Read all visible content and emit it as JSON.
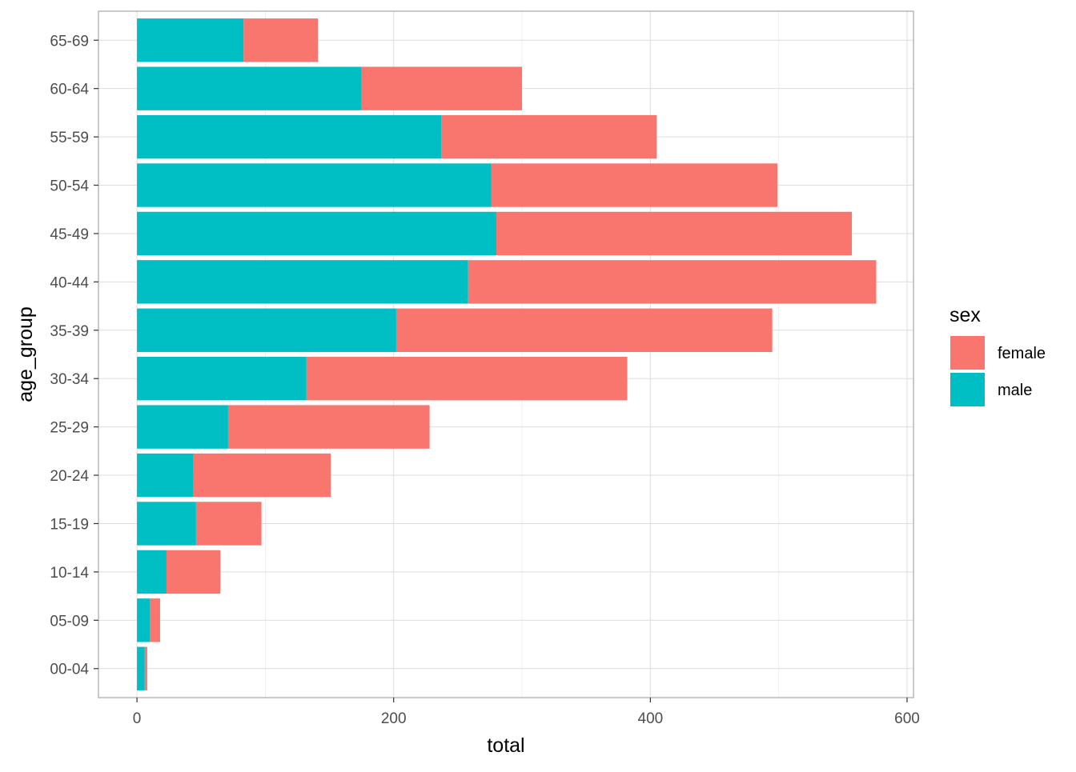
{
  "chart_data": {
    "type": "bar",
    "orientation": "horizontal",
    "stacked": true,
    "xlabel": "total",
    "ylabel": "age_group",
    "xlim": [
      -30,
      605
    ],
    "x_ticks": [
      0,
      200,
      400,
      600
    ],
    "x_tick_labels": [
      "0",
      "200",
      "400",
      "600"
    ],
    "categories": [
      "00-04",
      "05-09",
      "10-14",
      "15-19",
      "20-24",
      "25-29",
      "30-34",
      "35-39",
      "40-44",
      "45-49",
      "50-54",
      "55-59",
      "60-64",
      "65-69"
    ],
    "series": [
      {
        "name": "male",
        "color": "#00BFC4",
        "values": [
          6,
          10,
          23,
          46,
          44,
          71,
          132,
          202,
          258,
          280,
          276,
          237,
          175,
          83
        ]
      },
      {
        "name": "female",
        "color": "#F8766D",
        "values": [
          2,
          8,
          42,
          51,
          107,
          157,
          250,
          293,
          318,
          277,
          223,
          168,
          125,
          58
        ]
      }
    ],
    "grid": true,
    "legend": {
      "title": "sex",
      "position": "right",
      "items": [
        {
          "label": "female",
          "color": "#F8766D"
        },
        {
          "label": "male",
          "color": "#00BFC4"
        }
      ]
    }
  }
}
